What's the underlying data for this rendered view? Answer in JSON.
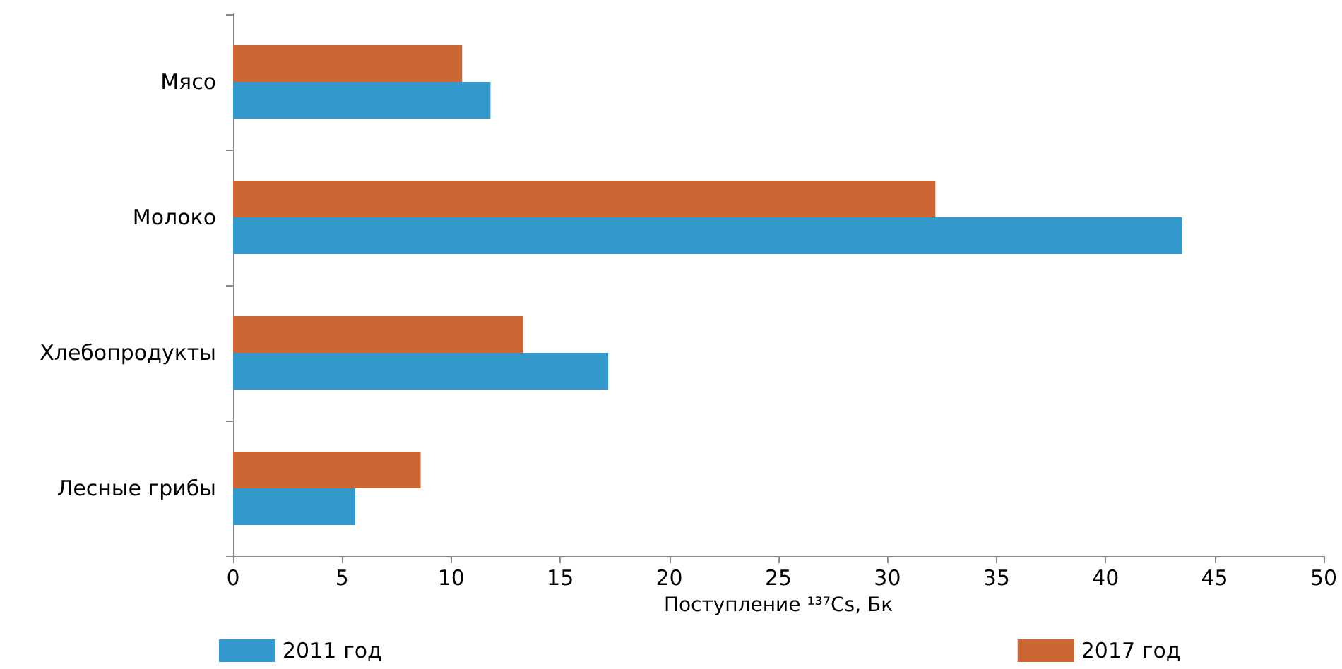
{
  "chart_data": {
    "type": "bar",
    "orientation": "horizontal",
    "xlabel": "Поступление ¹³⁷Cs, Бк",
    "categories": [
      "Мясо",
      "Молоко",
      "Хлебопродукты",
      "Лесные грибы"
    ],
    "series": [
      {
        "name": "2011 год",
        "color": "#3399cc",
        "values": [
          11.8,
          43.5,
          17.2,
          5.6
        ]
      },
      {
        "name": "2017 год",
        "color": "#cc6633",
        "values": [
          10.5,
          32.2,
          13.3,
          8.6
        ]
      }
    ],
    "xlim": [
      0,
      50
    ],
    "xticks": [
      0,
      5,
      10,
      15,
      20,
      25,
      30,
      35,
      40,
      45,
      50
    ],
    "grid": false,
    "legend": "bottom"
  }
}
